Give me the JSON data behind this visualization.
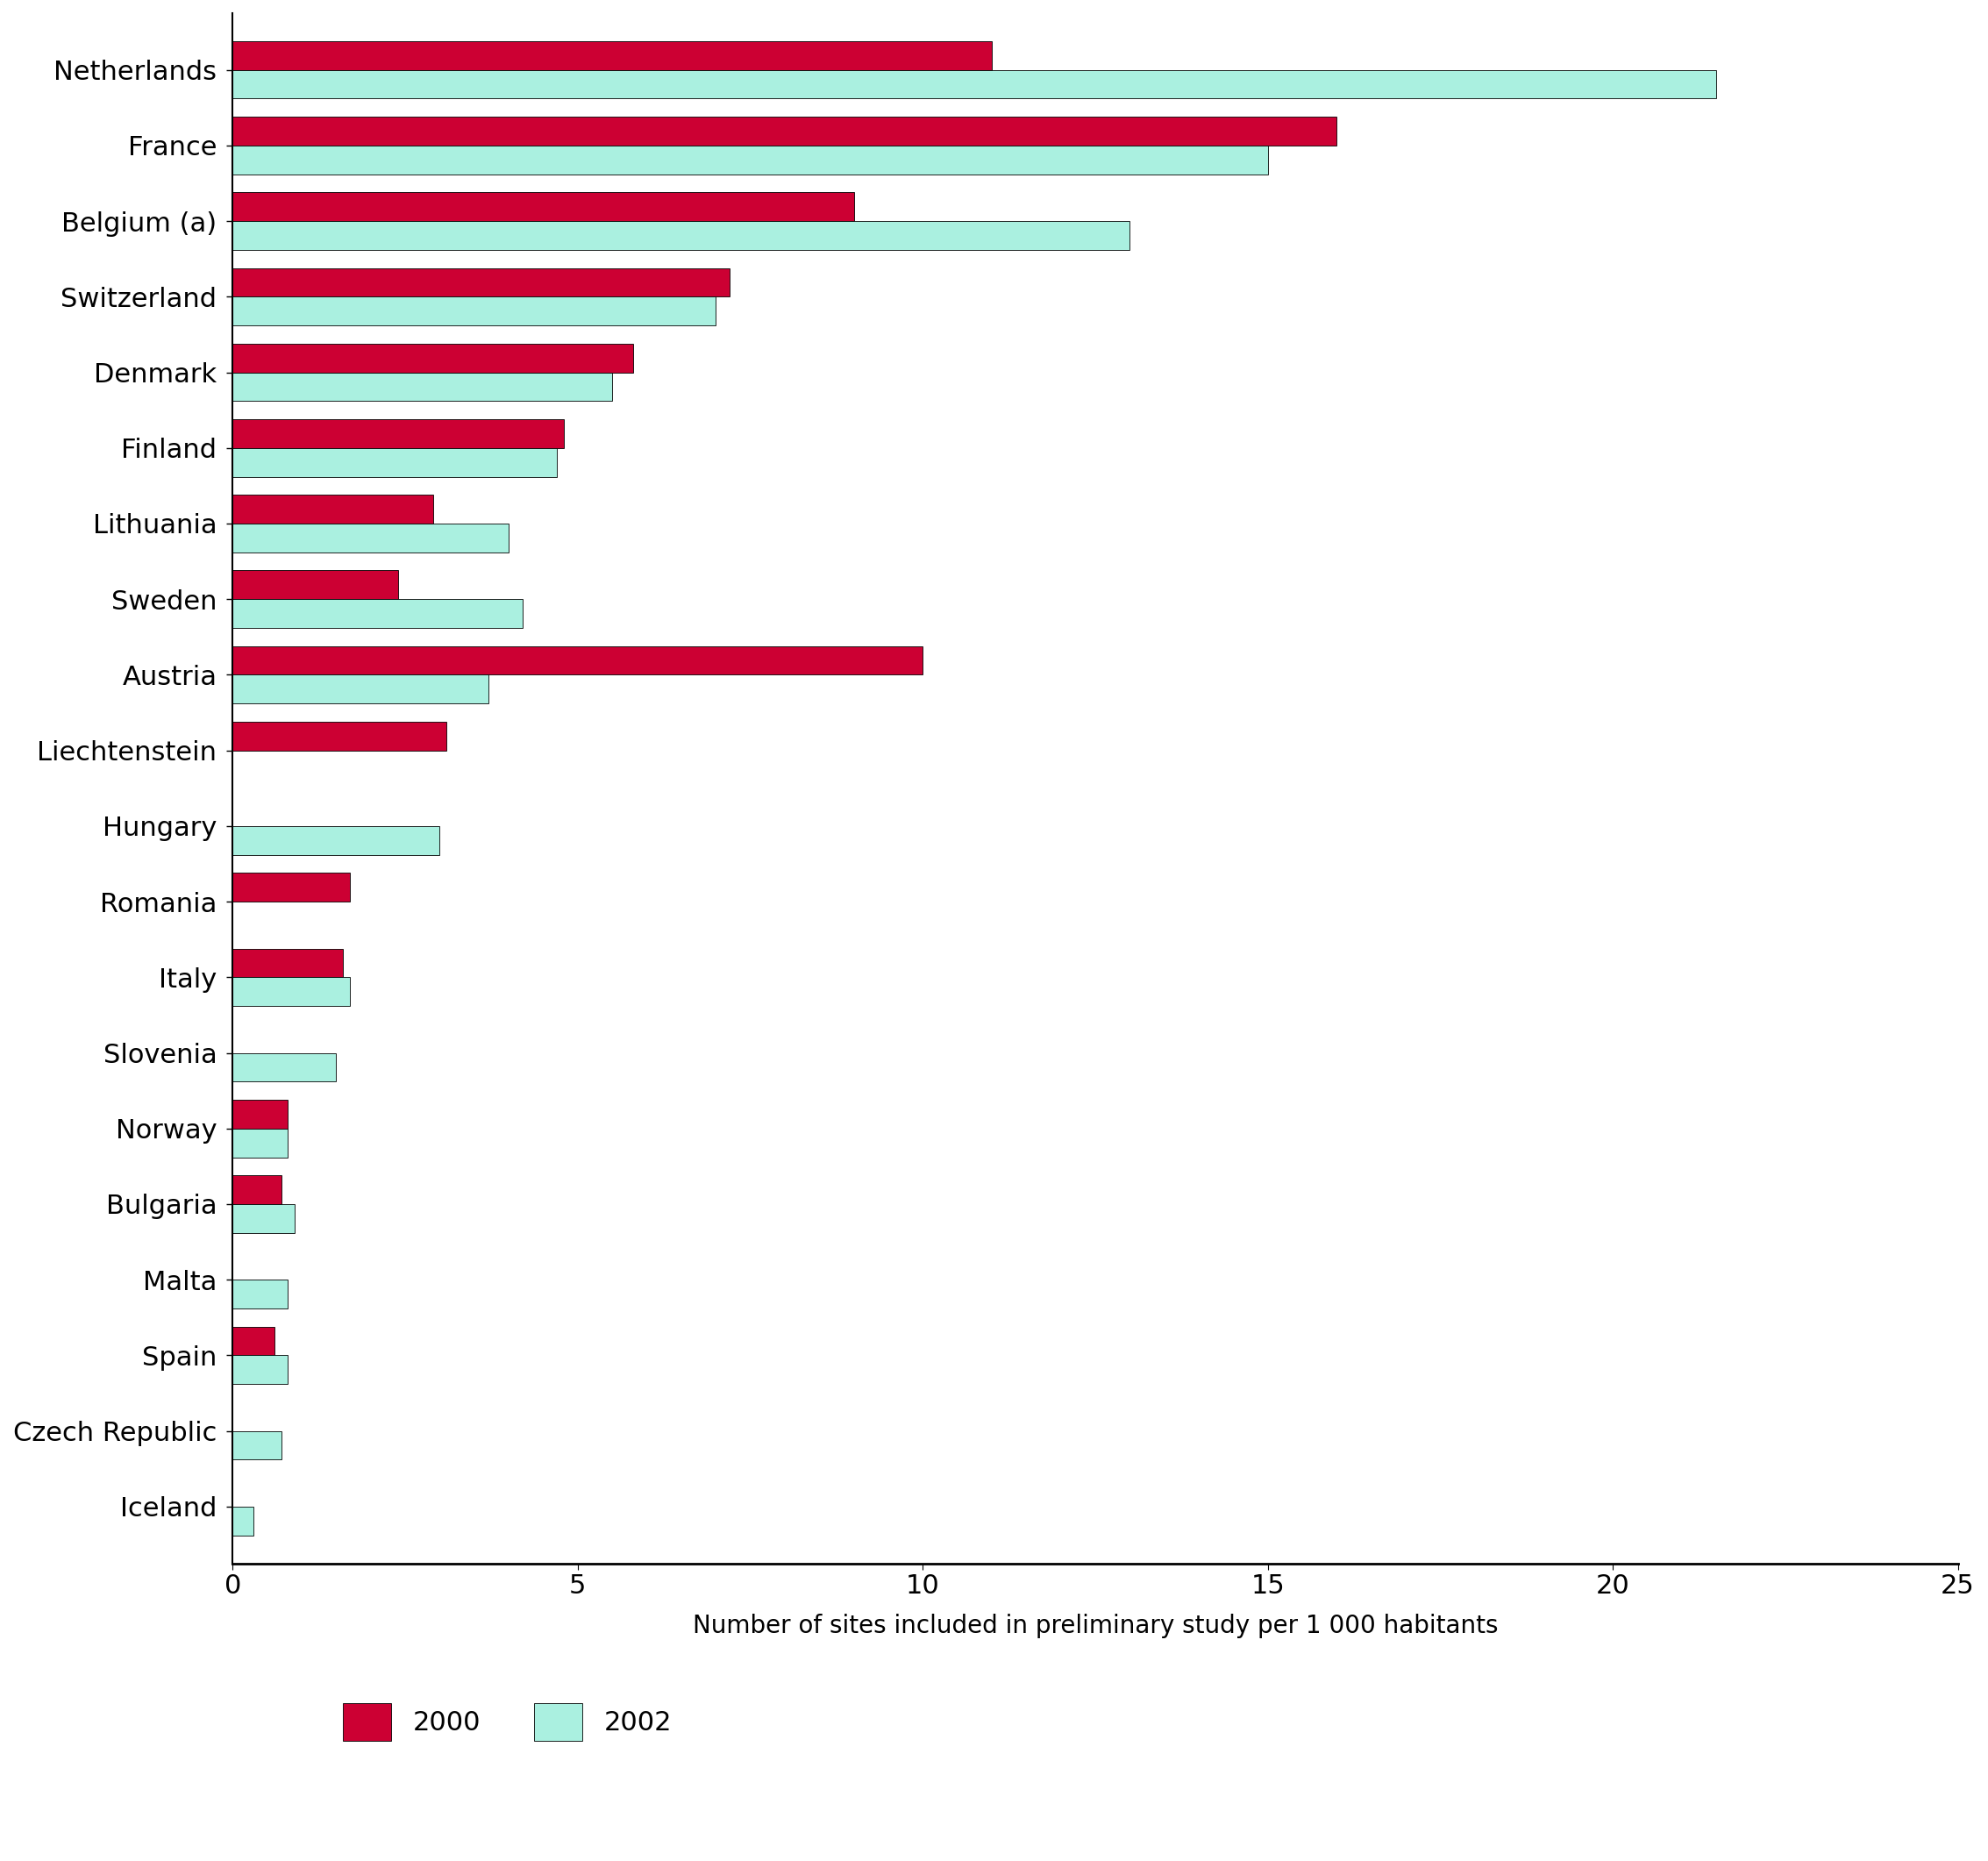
{
  "countries": [
    "Netherlands",
    "France",
    "Belgium (a)",
    "Switzerland",
    "Denmark",
    "Finland",
    "Lithuania",
    "Sweden",
    "Austria",
    "Liechtenstein",
    "Hungary",
    "Romania",
    "Italy",
    "Slovenia",
    "Norway",
    "Bulgaria",
    "Malta",
    "Spain",
    "Czech Republic",
    "Iceland"
  ],
  "values_2000": [
    11.0,
    16.0,
    9.0,
    7.2,
    5.8,
    4.8,
    2.9,
    2.4,
    10.0,
    3.1,
    0.0,
    1.7,
    1.6,
    0.0,
    0.8,
    0.7,
    0.0,
    0.6,
    0.0,
    0.0
  ],
  "values_2002": [
    21.5,
    15.0,
    13.0,
    7.0,
    5.5,
    4.7,
    4.0,
    4.2,
    3.7,
    0.0,
    3.0,
    0.0,
    1.7,
    1.5,
    0.8,
    0.9,
    0.8,
    0.8,
    0.7,
    0.3
  ],
  "color_2000": "#cc0033",
  "color_2002": "#aaf0e0",
  "xlabel": "Number of sites included in preliminary study per 1 000 habitants",
  "xlim": [
    0,
    25
  ],
  "xticks": [
    0,
    5,
    10,
    15,
    20,
    25
  ],
  "bar_height": 0.38,
  "legend_labels": [
    "2000",
    "2002"
  ],
  "title": "",
  "label_fontsize": 22,
  "tick_fontsize": 22,
  "xlabel_fontsize": 20,
  "legend_fontsize": 22
}
